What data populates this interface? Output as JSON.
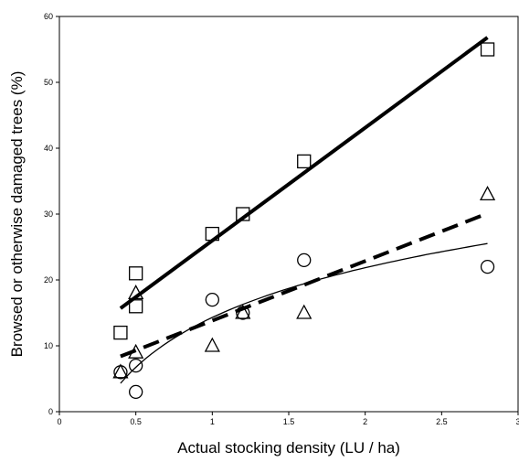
{
  "chart_data": {
    "type": "scatter",
    "xlabel": "Actual stocking density (LU / ha)",
    "ylabel": "Browsed or otherwise damaged trees (%)",
    "xlim": [
      0,
      3
    ],
    "ylim": [
      0,
      60
    ],
    "x_ticks": [
      0,
      0.5,
      1,
      1.5,
      2,
      2.5,
      3
    ],
    "x_tick_labels": [
      "0",
      "0.5",
      "1",
      "1.5",
      "2",
      "2.5",
      "3"
    ],
    "y_ticks": [
      0,
      10,
      20,
      30,
      40,
      50,
      60
    ],
    "y_tick_labels": [
      "0",
      "10",
      "20",
      "30",
      "40",
      "50",
      "60"
    ],
    "grid": false,
    "legend": "none",
    "series": [
      {
        "marker": "square",
        "points": [
          [
            0.4,
            12
          ],
          [
            0.5,
            21
          ],
          [
            0.5,
            16
          ],
          [
            1.0,
            27
          ],
          [
            1.2,
            30
          ],
          [
            1.6,
            38
          ],
          [
            2.8,
            55
          ]
        ],
        "fit": {
          "kind": "linear",
          "style": "thick-solid",
          "points": [
            [
              0.4,
              15.7
            ],
            [
              2.8,
              56.8
            ]
          ]
        }
      },
      {
        "marker": "triangle",
        "points": [
          [
            0.4,
            6
          ],
          [
            0.5,
            18
          ],
          [
            0.5,
            9
          ],
          [
            1.0,
            10
          ],
          [
            1.2,
            15
          ],
          [
            1.6,
            15
          ],
          [
            2.8,
            33
          ]
        ],
        "fit": {
          "kind": "linear",
          "style": "dashed",
          "points": [
            [
              0.4,
              8.4
            ],
            [
              2.8,
              30.1
            ]
          ]
        }
      },
      {
        "marker": "circle",
        "points": [
          [
            0.4,
            6
          ],
          [
            0.5,
            7
          ],
          [
            0.5,
            3
          ],
          [
            1.0,
            17
          ],
          [
            1.2,
            15
          ],
          [
            1.6,
            23
          ],
          [
            2.8,
            22
          ]
        ],
        "fit": {
          "kind": "logarithmic",
          "style": "thin-solid",
          "a": 14.3,
          "b": 10.9,
          "x_range": [
            0.4,
            2.8
          ]
        }
      }
    ]
  }
}
